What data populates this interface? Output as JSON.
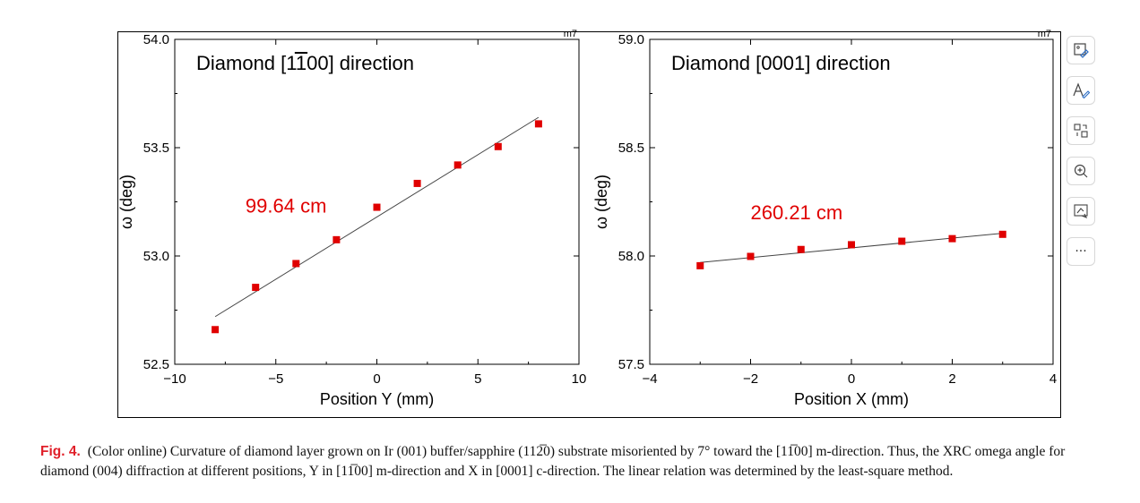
{
  "chart_data": [
    {
      "type": "scatter",
      "title": "Diamond [1100] direction",
      "title_overline": "1",
      "xlabel": "Position Y (mm)",
      "ylabel": "ω (deg)",
      "corner_label": "m7",
      "xlim": [
        -10,
        10
      ],
      "ylim": [
        52.5,
        54.0
      ],
      "xticks": [
        -10,
        -5,
        0,
        5,
        10
      ],
      "yticks": [
        52.5,
        53.0,
        53.5,
        54.0
      ],
      "xtick_labels": [
        "−10",
        "−5",
        "0",
        "5",
        "10"
      ],
      "ytick_labels": [
        "52.5",
        "53.0",
        "53.5",
        "54.0"
      ],
      "points": {
        "x": [
          -8,
          -6,
          -4,
          -2,
          0,
          2,
          4,
          6,
          8
        ],
        "y": [
          52.66,
          52.855,
          52.965,
          53.075,
          53.225,
          53.335,
          53.42,
          53.505,
          53.61
        ]
      },
      "fit_line": {
        "x": [
          -8,
          8
        ],
        "y": [
          52.72,
          53.64
        ]
      },
      "annotation": "99.64 cm",
      "annotation_at": {
        "x": -6.5,
        "y": 53.2
      },
      "marker_color": "#e00000",
      "annotation_color": "#e00000",
      "grid": false
    },
    {
      "type": "scatter",
      "title": "Diamond [0001] direction",
      "xlabel": "Position X (mm)",
      "ylabel": "ω (deg)",
      "corner_label": "m7",
      "xlim": [
        -4,
        4
      ],
      "ylim": [
        57.5,
        59.0
      ],
      "xticks": [
        -4,
        -2,
        0,
        2,
        4
      ],
      "yticks": [
        57.5,
        58.0,
        58.5,
        59.0
      ],
      "xtick_labels": [
        "−4",
        "−2",
        "0",
        "2",
        "4"
      ],
      "ytick_labels": [
        "57.5",
        "58.0",
        "58.5",
        "59.0"
      ],
      "points": {
        "x": [
          -3,
          -2,
          -1,
          0,
          1,
          2,
          3
        ],
        "y": [
          57.955,
          57.998,
          58.03,
          58.052,
          58.068,
          58.08,
          58.1
        ]
      },
      "fit_line": {
        "x": [
          -3,
          3
        ],
        "y": [
          57.97,
          58.105
        ]
      },
      "annotation": "260.21 cm",
      "annotation_at": {
        "x": -2.0,
        "y": 58.17
      },
      "marker_color": "#e00000",
      "annotation_color": "#e00000",
      "grid": false
    }
  ],
  "toolbar": {
    "items": [
      {
        "icon": "image-edit-icon"
      },
      {
        "icon": "text-annotate-icon"
      },
      {
        "icon": "rotate-swap-icon"
      },
      {
        "icon": "zoom-in-icon"
      },
      {
        "icon": "screen-capture-icon"
      },
      {
        "icon": "more-icon",
        "glyph": "···"
      }
    ]
  },
  "caption": {
    "label": "Fig. 4.",
    "text": "(Color online) Curvature of diamond layer grown on Ir (001) buffer/sapphire (112̅0) substrate misoriented by 7° toward the [11̅00] m-direction. Thus, the XRC omega angle for diamond (004) diffraction at different positions, Y in [11̅00] m-direction and X in [0001] c-direction. The linear relation was determined by the least-square method."
  }
}
